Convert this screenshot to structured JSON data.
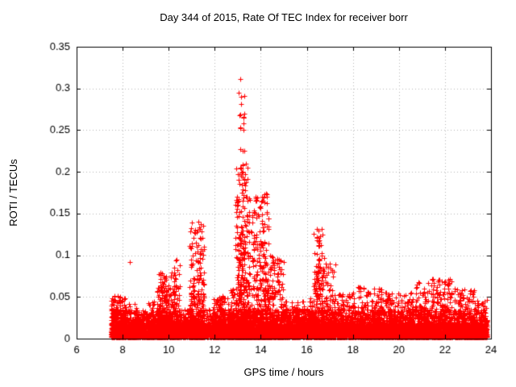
{
  "chart_data": {
    "type": "scatter",
    "title": "Day 344 of 2015, Rate Of TEC Index for receiver borr",
    "xlabel": "GPS time / hours",
    "ylabel": "ROTI / TECUs",
    "xlim": [
      6,
      24
    ],
    "ylim": [
      0,
      0.35
    ],
    "xticks": [
      6,
      8,
      10,
      12,
      14,
      16,
      18,
      20,
      22,
      24
    ],
    "xtick_labels": [
      "6",
      "8",
      "10",
      "12",
      "14",
      "16",
      "18",
      "20",
      "22",
      "24"
    ],
    "yticks": [
      0,
      0.05,
      0.1,
      0.15,
      0.2,
      0.25,
      0.3,
      0.35
    ],
    "ytick_labels": [
      "0",
      "0.05",
      "0.1",
      "0.15",
      "0.2",
      "0.25",
      "0.3",
      "0.35"
    ],
    "grid": true,
    "legend": "none",
    "marker": "plus",
    "color": "#ff0000",
    "seed": 1337,
    "data_extent": [
      7.5,
      23.83
    ],
    "point_clusters": [
      {
        "x0": 7.5,
        "x1": 23.83,
        "n": 5000,
        "y0": 0.002,
        "y1": 0.035,
        "pow": 2.2
      },
      {
        "x0": 7.5,
        "x1": 23.83,
        "n": 2500,
        "y0": 0.002,
        "y1": 0.018,
        "pow": 1.2
      },
      {
        "x0": 7.5,
        "x1": 8.15,
        "n": 300,
        "y0": 0.002,
        "y1": 0.052,
        "pow": 2.5
      },
      {
        "x0": 8.2,
        "x1": 8.7,
        "n": 150,
        "y0": 0.002,
        "y1": 0.042,
        "pow": 2.8
      },
      {
        "x0": 9.0,
        "x1": 9.4,
        "n": 120,
        "y0": 0.002,
        "y1": 0.045,
        "pow": 2.8
      },
      {
        "x0": 9.5,
        "x1": 10.2,
        "n": 350,
        "y0": 0.002,
        "y1": 0.08,
        "pow": 3.0
      },
      {
        "x0": 10.2,
        "x1": 10.5,
        "n": 120,
        "y0": 0.002,
        "y1": 0.098,
        "pow": 3.0
      },
      {
        "x0": 10.9,
        "x1": 11.55,
        "n": 420,
        "y0": 0.002,
        "y1": 0.142,
        "pow": 3.5
      },
      {
        "x0": 11.9,
        "x1": 12.45,
        "n": 220,
        "y0": 0.002,
        "y1": 0.052,
        "pow": 2.8
      },
      {
        "x0": 12.55,
        "x1": 12.85,
        "n": 130,
        "y0": 0.002,
        "y1": 0.06,
        "pow": 2.8
      },
      {
        "x0": 12.9,
        "x1": 13.55,
        "n": 550,
        "y0": 0.002,
        "y1": 0.21,
        "pow": 3.2
      },
      {
        "x0": 13.0,
        "x1": 13.3,
        "n": 60,
        "y0": 0.01,
        "y1": 0.3,
        "pow": 2.5
      },
      {
        "x0": 13.6,
        "x1": 14.35,
        "n": 480,
        "y0": 0.002,
        "y1": 0.175,
        "pow": 3.4
      },
      {
        "x0": 14.35,
        "x1": 15.0,
        "n": 260,
        "y0": 0.002,
        "y1": 0.1,
        "pow": 3.2
      },
      {
        "x0": 15.0,
        "x1": 15.7,
        "n": 160,
        "y0": 0.002,
        "y1": 0.045,
        "pow": 2.8
      },
      {
        "x0": 15.8,
        "x1": 16.25,
        "n": 140,
        "y0": 0.002,
        "y1": 0.05,
        "pow": 2.8
      },
      {
        "x0": 16.3,
        "x1": 16.75,
        "n": 260,
        "y0": 0.002,
        "y1": 0.132,
        "pow": 3.2
      },
      {
        "x0": 16.8,
        "x1": 17.25,
        "n": 150,
        "y0": 0.002,
        "y1": 0.092,
        "pow": 3.0
      },
      {
        "x0": 17.3,
        "x1": 18.1,
        "n": 200,
        "y0": 0.002,
        "y1": 0.055,
        "pow": 2.8
      },
      {
        "x0": 18.2,
        "x1": 19.3,
        "n": 300,
        "y0": 0.002,
        "y1": 0.062,
        "pow": 2.8
      },
      {
        "x0": 19.4,
        "x1": 20.6,
        "n": 320,
        "y0": 0.002,
        "y1": 0.055,
        "pow": 2.8
      },
      {
        "x0": 20.7,
        "x1": 21.3,
        "n": 200,
        "y0": 0.002,
        "y1": 0.068,
        "pow": 2.8
      },
      {
        "x0": 21.4,
        "x1": 22.3,
        "n": 280,
        "y0": 0.002,
        "y1": 0.072,
        "pow": 2.8
      },
      {
        "x0": 22.4,
        "x1": 23.3,
        "n": 260,
        "y0": 0.002,
        "y1": 0.06,
        "pow": 2.8
      },
      {
        "x0": 23.3,
        "x1": 23.83,
        "n": 160,
        "y0": 0.002,
        "y1": 0.048,
        "pow": 2.8
      }
    ],
    "notable_peaks": [
      {
        "x": 13.1,
        "y": 0.311
      },
      {
        "x": 13.13,
        "y": 0.29
      },
      {
        "x": 13.08,
        "y": 0.268
      },
      {
        "x": 13.12,
        "y": 0.252
      },
      {
        "x": 13.2,
        "y": 0.225
      },
      {
        "x": 13.05,
        "y": 0.19
      },
      {
        "x": 14.05,
        "y": 0.17
      },
      {
        "x": 14.15,
        "y": 0.163
      },
      {
        "x": 11.3,
        "y": 0.14
      },
      {
        "x": 11.22,
        "y": 0.128
      },
      {
        "x": 16.5,
        "y": 0.13
      },
      {
        "x": 16.45,
        "y": 0.122
      },
      {
        "x": 10.35,
        "y": 0.095
      },
      {
        "x": 8.3,
        "y": 0.092
      },
      {
        "x": 17.0,
        "y": 0.09
      },
      {
        "x": 14.5,
        "y": 0.098
      }
    ]
  }
}
